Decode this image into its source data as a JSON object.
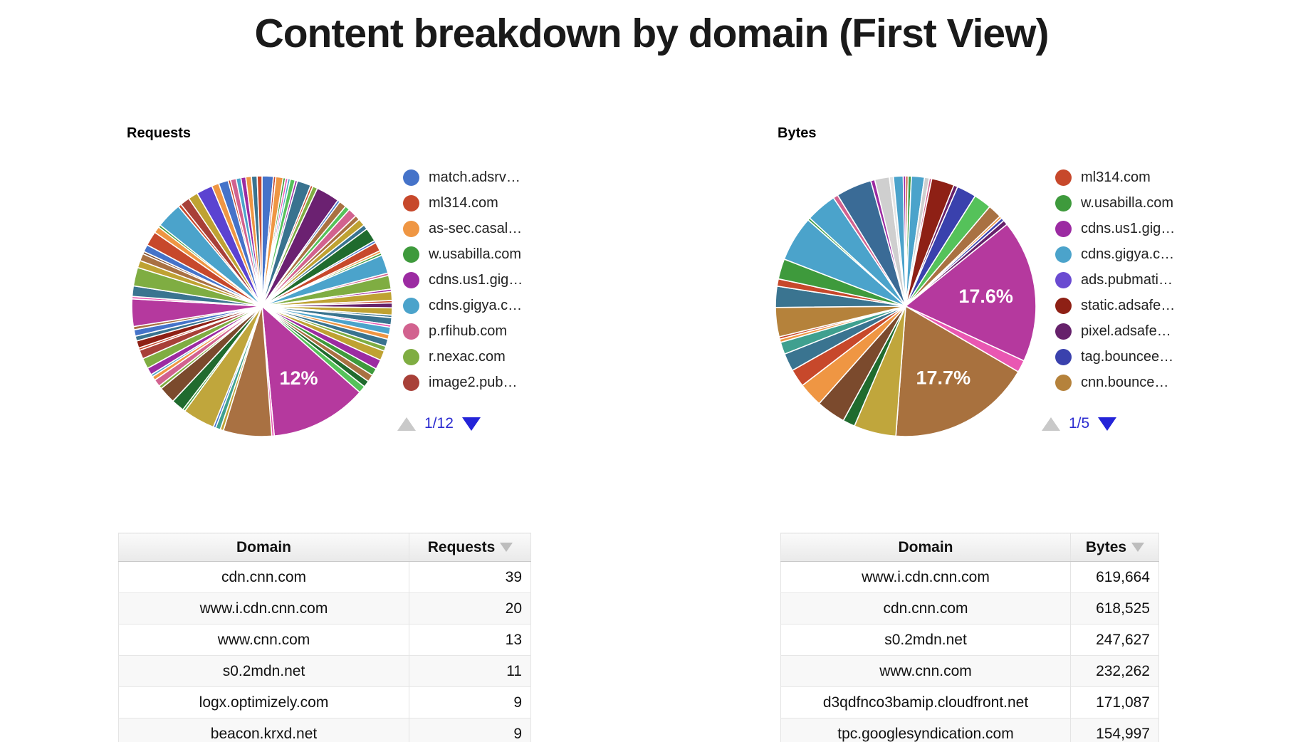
{
  "page": {
    "title": "Content breakdown by domain (First View)"
  },
  "requests_section": {
    "heading": "Requests",
    "pagination": "1/12",
    "table": {
      "headers": [
        "Domain",
        "Requests"
      ],
      "sort": "desc",
      "rows": [
        [
          "cdn.cnn.com",
          "39"
        ],
        [
          "www.i.cdn.cnn.com",
          "20"
        ],
        [
          "www.cnn.com",
          "13"
        ],
        [
          "s0.2mdn.net",
          "11"
        ],
        [
          "logx.optimizely.com",
          "9"
        ],
        [
          "beacon.krxd.net",
          "9"
        ]
      ]
    }
  },
  "bytes_section": {
    "heading": "Bytes",
    "pagination": "1/5",
    "table": {
      "headers": [
        "Domain",
        "Bytes"
      ],
      "sort": "desc",
      "rows": [
        [
          "www.i.cdn.cnn.com",
          "619,664"
        ],
        [
          "cdn.cnn.com",
          "618,525"
        ],
        [
          "s0.2mdn.net",
          "247,627"
        ],
        [
          "www.cnn.com",
          "232,262"
        ],
        [
          "d3qdfnco3bamip.cloudfront.net",
          "171,087"
        ],
        [
          "tpc.googlesyndication.com",
          "154,997"
        ]
      ]
    }
  },
  "chart_data": [
    {
      "type": "pie",
      "title": "Requests",
      "legend_position": "right",
      "legend_page": "1/12",
      "legend_entries": [
        {
          "label": "match.adsrv…",
          "color": "#4573C9"
        },
        {
          "label": "ml314.com",
          "color": "#C7482B"
        },
        {
          "label": "as-sec.casal…",
          "color": "#EF9643"
        },
        {
          "label": "w.usabilla.com",
          "color": "#3E9A3C"
        },
        {
          "label": "cdns.us1.gig…",
          "color": "#9C2BA2"
        },
        {
          "label": "cdns.gigya.c…",
          "color": "#4BA3CB"
        },
        {
          "label": "p.rfihub.com",
          "color": "#D2628F"
        },
        {
          "label": "r.nexac.com",
          "color": "#7FAD42"
        },
        {
          "label": "image2.pub…",
          "color": "#A84038"
        }
      ],
      "labeled_slices": [
        {
          "label": "12%",
          "value_pct": 12.0,
          "color": "#B5399E"
        }
      ],
      "slice_gap_color": "#ffffff",
      "slices": [
        {
          "p": 1.4,
          "c": "#4573C9"
        },
        {
          "p": 0.3,
          "c": "#C7482B"
        },
        {
          "p": 0.9,
          "c": "#EF9643"
        },
        {
          "p": 0.3,
          "c": "#3E9A3C"
        },
        {
          "p": 0.3,
          "c": "#E957B2"
        },
        {
          "p": 0.3,
          "c": "#4BA3CB"
        },
        {
          "p": 0.6,
          "c": "#55C25A"
        },
        {
          "p": 0.3,
          "c": "#9C2BA2"
        },
        {
          "p": 1.7,
          "c": "#39738F"
        },
        {
          "p": 0.3,
          "c": "#C7482B"
        },
        {
          "p": 0.6,
          "c": "#7FAD42"
        },
        {
          "p": 2.9,
          "c": "#6B2171"
        },
        {
          "p": 0.3,
          "c": "#4573C9"
        },
        {
          "p": 0.9,
          "c": "#A97142"
        },
        {
          "p": 0.6,
          "c": "#55C25A"
        },
        {
          "p": 1.1,
          "c": "#D2628F"
        },
        {
          "p": 0.6,
          "c": "#A97142"
        },
        {
          "p": 0.9,
          "c": "#BFA232"
        },
        {
          "p": 0.6,
          "c": "#39738F"
        },
        {
          "p": 1.7,
          "c": "#206B2E"
        },
        {
          "p": 0.3,
          "c": "#4573C9"
        },
        {
          "p": 1.1,
          "c": "#C7482B"
        },
        {
          "p": 0.3,
          "c": "#EF9643"
        },
        {
          "p": 0.3,
          "c": "#3E9A3C"
        },
        {
          "p": 2.3,
          "c": "#4BA3CB"
        },
        {
          "p": 0.3,
          "c": "#D2628F"
        },
        {
          "p": 1.7,
          "c": "#7FAD42"
        },
        {
          "p": 0.3,
          "c": "#9C2BA2"
        },
        {
          "p": 1.1,
          "c": "#BFA232"
        },
        {
          "p": 0.3,
          "c": "#C7482B"
        },
        {
          "p": 0.6,
          "c": "#66216B"
        },
        {
          "p": 0.9,
          "c": "#BFA232"
        },
        {
          "p": 0.3,
          "c": "#39738F"
        },
        {
          "p": 0.9,
          "c": "#39738F"
        },
        {
          "p": 0.3,
          "c": "#E957B2"
        },
        {
          "p": 0.9,
          "c": "#4BA3CB"
        },
        {
          "p": 0.6,
          "c": "#EF9643"
        },
        {
          "p": 0.9,
          "c": "#39738F"
        },
        {
          "p": 0.6,
          "c": "#7FAD42"
        },
        {
          "p": 1.2,
          "c": "#BFA232"
        },
        {
          "p": 1.2,
          "c": "#9C2BA2"
        },
        {
          "p": 0.9,
          "c": "#3E9A3C"
        },
        {
          "p": 0.9,
          "c": "#A97142"
        },
        {
          "p": 0.8,
          "c": "#206B2E"
        },
        {
          "p": 0.9,
          "c": "#55C25A"
        },
        {
          "p": 12.0,
          "c": "#B5399E",
          "label": "12%"
        },
        {
          "p": 0.3,
          "c": "#E957B2"
        },
        {
          "p": 6.0,
          "c": "#A97142"
        },
        {
          "p": 0.4,
          "c": "#BFA232"
        },
        {
          "p": 0.6,
          "c": "#3FA08F"
        },
        {
          "p": 0.3,
          "c": "#4573C9"
        },
        {
          "p": 4.0,
          "c": "#C0A63C"
        },
        {
          "p": 0.3,
          "c": "#3E9A3C"
        },
        {
          "p": 1.6,
          "c": "#206B2E"
        },
        {
          "p": 2.1,
          "c": "#7B4A2D"
        },
        {
          "p": 0.4,
          "c": "#7FAD42"
        },
        {
          "p": 0.9,
          "c": "#D2628F"
        },
        {
          "p": 0.5,
          "c": "#EF9643"
        },
        {
          "p": 0.3,
          "c": "#4BA3CB"
        },
        {
          "p": 0.9,
          "c": "#9C2BA2"
        },
        {
          "p": 1.3,
          "c": "#7FAD42"
        },
        {
          "p": 1.1,
          "c": "#A84038"
        },
        {
          "p": 0.3,
          "c": "#C7482B"
        },
        {
          "p": 0.9,
          "c": "#8E2015"
        },
        {
          "p": 0.6,
          "c": "#39738F"
        },
        {
          "p": 0.8,
          "c": "#4573C9"
        },
        {
          "p": 0.4,
          "c": "#A97142"
        },
        {
          "p": 3.4,
          "c": "#B5399E"
        },
        {
          "p": 0.3,
          "c": "#E957B2"
        },
        {
          "p": 1.3,
          "c": "#3A7490"
        },
        {
          "p": 2.3,
          "c": "#7FAD42"
        },
        {
          "p": 0.9,
          "c": "#BFA232"
        },
        {
          "p": 0.9,
          "c": "#A97142"
        },
        {
          "p": 0.3,
          "c": "#7B4A2D"
        },
        {
          "p": 0.9,
          "c": "#4573C9"
        },
        {
          "p": 1.8,
          "c": "#C7482B"
        },
        {
          "p": 0.8,
          "c": "#EF9643"
        },
        {
          "p": 0.3,
          "c": "#3E9A3C"
        },
        {
          "p": 3.2,
          "c": "#4BA3CB"
        },
        {
          "p": 0.4,
          "c": "#C7482B"
        },
        {
          "p": 1.2,
          "c": "#A84038"
        },
        {
          "p": 1.2,
          "c": "#BFA232"
        },
        {
          "p": 2.0,
          "c": "#5B43D1"
        },
        {
          "p": 0.9,
          "c": "#EF9643"
        },
        {
          "p": 1.2,
          "c": "#4573C9"
        },
        {
          "p": 0.3,
          "c": "#C7482B"
        },
        {
          "p": 0.7,
          "c": "#D2628F"
        },
        {
          "p": 0.6,
          "c": "#4BA3CB"
        },
        {
          "p": 0.6,
          "c": "#9C2BA2"
        },
        {
          "p": 0.7,
          "c": "#EF9643"
        },
        {
          "p": 0.7,
          "c": "#39738F"
        },
        {
          "p": 0.6,
          "c": "#C7482B"
        }
      ]
    },
    {
      "type": "pie",
      "title": "Bytes",
      "legend_position": "right",
      "legend_page": "1/5",
      "legend_entries": [
        {
          "label": "ml314.com",
          "color": "#C7482B"
        },
        {
          "label": "w.usabilla.com",
          "color": "#3E9A3C"
        },
        {
          "label": "cdns.us1.gig…",
          "color": "#9C2BA2"
        },
        {
          "label": "cdns.gigya.c…",
          "color": "#4BA3CB"
        },
        {
          "label": "ads.pubmati…",
          "color": "#6A4BD1"
        },
        {
          "label": "static.adsafe…",
          "color": "#8E2015"
        },
        {
          "label": "pixel.adsafe…",
          "color": "#66216B"
        },
        {
          "label": "tag.bouncee…",
          "color": "#3A41AD"
        },
        {
          "label": "cnn.bounce…",
          "color": "#B5823B"
        }
      ],
      "labeled_slices": [
        {
          "label": "17.6%",
          "value_pct": 17.6,
          "color": "#B5399E"
        },
        {
          "label": "17.7%",
          "value_pct": 17.7,
          "color": "#A8713E"
        }
      ],
      "slice_gap_color": "#ffffff",
      "slices": [
        {
          "p": 0.3,
          "c": "#C7482B"
        },
        {
          "p": 0.4,
          "c": "#3E9A3C"
        },
        {
          "p": 1.6,
          "c": "#4BA3CB"
        },
        {
          "p": 0.6,
          "c": "#CFCFCF"
        },
        {
          "p": 0.3,
          "c": "#D2628F"
        },
        {
          "p": 2.8,
          "c": "#8E2015"
        },
        {
          "p": 0.5,
          "c": "#66216B"
        },
        {
          "p": 2.4,
          "c": "#3A41AD"
        },
        {
          "p": 2.2,
          "c": "#55C25A"
        },
        {
          "p": 1.7,
          "c": "#A97142"
        },
        {
          "p": 0.3,
          "c": "#EF9643"
        },
        {
          "p": 0.4,
          "c": "#3A41AD"
        },
        {
          "p": 0.6,
          "c": "#66216B"
        },
        {
          "p": 17.6,
          "c": "#B5399E",
          "label": "17.6%"
        },
        {
          "p": 1.5,
          "c": "#E957B2"
        },
        {
          "p": 17.7,
          "c": "#A8713E",
          "label": "17.7%"
        },
        {
          "p": 5.2,
          "c": "#C0A63C"
        },
        {
          "p": 1.5,
          "c": "#206B2E"
        },
        {
          "p": 3.6,
          "c": "#7B4A2D"
        },
        {
          "p": 3.0,
          "c": "#EF9643"
        },
        {
          "p": 2.2,
          "c": "#C7482B"
        },
        {
          "p": 2.2,
          "c": "#3A7490"
        },
        {
          "p": 1.5,
          "c": "#3FA08F"
        },
        {
          "p": 0.4,
          "c": "#EF9643"
        },
        {
          "p": 0.3,
          "c": "#C7482B"
        },
        {
          "p": 3.6,
          "c": "#B5823B"
        },
        {
          "p": 2.6,
          "c": "#3A7490"
        },
        {
          "p": 0.9,
          "c": "#C7482B"
        },
        {
          "p": 2.5,
          "c": "#3E9A3C"
        },
        {
          "p": 5.6,
          "c": "#4BA3CB"
        },
        {
          "p": 0.3,
          "c": "#3E9A3C"
        },
        {
          "p": 3.8,
          "c": "#4BA3CB"
        },
        {
          "p": 0.6,
          "c": "#D2628F"
        },
        {
          "p": 4.4,
          "c": "#3A6B96"
        },
        {
          "p": 0.5,
          "c": "#9C2BA2"
        },
        {
          "p": 1.8,
          "c": "#CFCFCF"
        },
        {
          "p": 0.5,
          "c": "#E3E3E3"
        },
        {
          "p": 1.2,
          "c": "#4BA3CB"
        },
        {
          "p": 0.3,
          "c": "#9C2BA2"
        }
      ]
    }
  ]
}
